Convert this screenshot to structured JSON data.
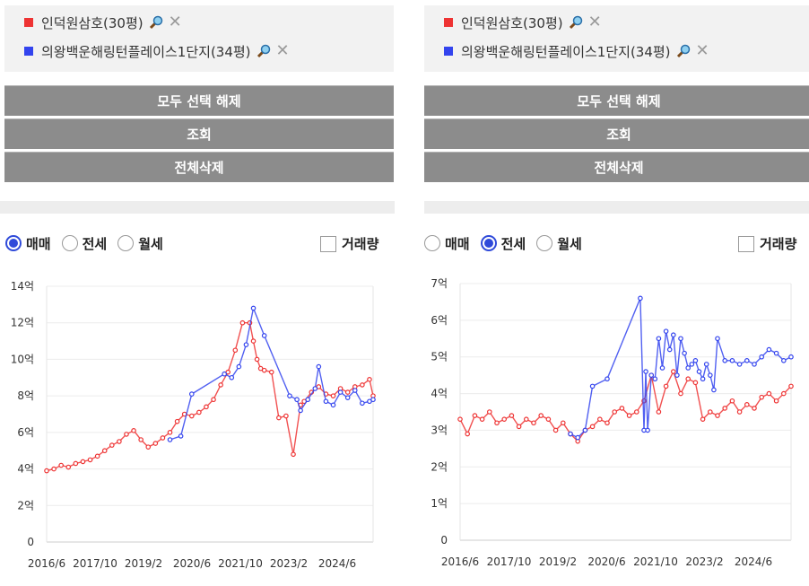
{
  "panels": [
    {
      "legend": [
        {
          "label": "인덕원삼호(30평)",
          "color": "#ee3333"
        },
        {
          "label": "의왕백운해링턴플레이스1단지(34평)",
          "color": "#3344ee"
        }
      ],
      "buttons": {
        "deselect": "모두 선택 해제",
        "search": "조회",
        "delete_all": "전체삭제"
      },
      "radios": [
        {
          "label": "매매",
          "checked": true
        },
        {
          "label": "전세",
          "checked": false
        },
        {
          "label": "월세",
          "checked": false
        }
      ],
      "volume_label": "거래량"
    },
    {
      "legend": [
        {
          "label": "인덕원삼호(30평)",
          "color": "#ee3333"
        },
        {
          "label": "의왕백운해링턴플레이스1단지(34평)",
          "color": "#3344ee"
        }
      ],
      "buttons": {
        "deselect": "모두 선택 해제",
        "search": "조회",
        "delete_all": "전체삭제"
      },
      "radios": [
        {
          "label": "매매",
          "checked": false
        },
        {
          "label": "전세",
          "checked": true
        },
        {
          "label": "월세",
          "checked": false
        }
      ],
      "volume_label": "거래량"
    }
  ],
  "chart_data": [
    {
      "type": "line",
      "ytick_labels": [
        "0",
        "2억",
        "4억",
        "6억",
        "8억",
        "10억",
        "12억",
        "14억"
      ],
      "ylim": [
        0,
        14
      ],
      "xtick_labels": [
        "2016/6",
        "2017/10",
        "2019/2",
        "2020/6",
        "2021/10",
        "2023/2",
        "2024/6"
      ],
      "xlim": [
        2016.0,
        2025.0
      ],
      "grid": true,
      "series": [
        {
          "name": "인덕원삼호(30평)",
          "color": "#ee3333",
          "x": [
            2016.0,
            2016.2,
            2016.4,
            2016.6,
            2016.8,
            2017.0,
            2017.2,
            2017.4,
            2017.6,
            2017.8,
            2018.0,
            2018.2,
            2018.4,
            2018.6,
            2018.8,
            2019.0,
            2019.2,
            2019.4,
            2019.6,
            2019.8,
            2020.0,
            2020.2,
            2020.4,
            2020.6,
            2020.8,
            2021.0,
            2021.2,
            2021.4,
            2021.6,
            2021.7,
            2021.8,
            2021.9,
            2022.0,
            2022.2,
            2022.4,
            2022.6,
            2022.8,
            2023.0,
            2023.1,
            2023.3,
            2023.5,
            2023.7,
            2023.9,
            2024.1,
            2024.3,
            2024.5,
            2024.7,
            2024.9,
            2025.0
          ],
          "y": [
            3.9,
            4.0,
            4.2,
            4.1,
            4.3,
            4.4,
            4.5,
            4.7,
            5.0,
            5.3,
            5.5,
            5.9,
            6.1,
            5.6,
            5.2,
            5.4,
            5.7,
            6.0,
            6.6,
            7.0,
            6.9,
            7.1,
            7.4,
            7.8,
            8.6,
            9.3,
            10.5,
            12.0,
            12.0,
            11.0,
            10.0,
            9.5,
            9.4,
            9.3,
            6.8,
            6.9,
            4.8,
            7.5,
            7.7,
            8.2,
            8.5,
            8.1,
            8.0,
            8.4,
            8.2,
            8.5,
            8.6,
            8.9,
            8.0
          ]
        },
        {
          "name": "의왕백운해링턴플레이스1단지(34평)",
          "color": "#3344ee",
          "x": [
            2019.4,
            2019.7,
            2020.0,
            2020.9,
            2021.1,
            2021.3,
            2021.5,
            2021.7,
            2022.0,
            2022.7,
            2022.9,
            2023.0,
            2023.2,
            2023.4,
            2023.5,
            2023.7,
            2023.9,
            2024.1,
            2024.3,
            2024.5,
            2024.7,
            2024.9,
            2025.0
          ],
          "y": [
            5.6,
            5.8,
            8.1,
            9.2,
            9.0,
            9.6,
            10.8,
            12.8,
            11.3,
            8.0,
            7.8,
            7.2,
            7.8,
            8.4,
            9.6,
            7.7,
            7.5,
            8.2,
            7.9,
            8.3,
            7.6,
            7.7,
            7.8
          ]
        }
      ]
    },
    {
      "type": "line",
      "ytick_labels": [
        "0",
        "1억",
        "2억",
        "3억",
        "4억",
        "5억",
        "6억",
        "7억"
      ],
      "ylim": [
        0,
        7
      ],
      "xtick_labels": [
        "2016/6",
        "2017/10",
        "2019/2",
        "2020/6",
        "2021/10",
        "2023/2",
        "2024/6"
      ],
      "xlim": [
        2016.0,
        2025.0
      ],
      "grid": true,
      "series": [
        {
          "name": "인덕원삼호(30평)",
          "color": "#ee3333",
          "x": [
            2016.0,
            2016.2,
            2016.4,
            2016.6,
            2016.8,
            2017.0,
            2017.2,
            2017.4,
            2017.6,
            2017.8,
            2018.0,
            2018.2,
            2018.4,
            2018.6,
            2018.8,
            2019.0,
            2019.2,
            2019.4,
            2019.6,
            2019.8,
            2020.0,
            2020.2,
            2020.4,
            2020.6,
            2020.8,
            2021.0,
            2021.2,
            2021.4,
            2021.6,
            2021.8,
            2022.0,
            2022.2,
            2022.4,
            2022.6,
            2022.8,
            2023.0,
            2023.2,
            2023.4,
            2023.6,
            2023.8,
            2024.0,
            2024.2,
            2024.4,
            2024.6,
            2024.8,
            2025.0
          ],
          "y": [
            3.3,
            2.9,
            3.4,
            3.3,
            3.5,
            3.2,
            3.3,
            3.4,
            3.1,
            3.3,
            3.2,
            3.4,
            3.3,
            3.0,
            3.2,
            2.9,
            2.7,
            3.0,
            3.1,
            3.3,
            3.2,
            3.5,
            3.6,
            3.4,
            3.5,
            3.8,
            4.5,
            3.5,
            4.2,
            4.6,
            4.0,
            4.4,
            4.3,
            3.3,
            3.5,
            3.4,
            3.6,
            3.8,
            3.5,
            3.7,
            3.6,
            3.9,
            4.0,
            3.8,
            4.0,
            4.2
          ]
        },
        {
          "name": "의왕백운해링턴플레이스1단지(34평)",
          "color": "#3344ee",
          "x": [
            2019.0,
            2019.2,
            2019.4,
            2019.6,
            2020.0,
            2020.9,
            2021.0,
            2021.05,
            2021.1,
            2021.2,
            2021.3,
            2021.4,
            2021.5,
            2021.6,
            2021.7,
            2021.8,
            2021.9,
            2022.0,
            2022.1,
            2022.2,
            2022.3,
            2022.4,
            2022.5,
            2022.6,
            2022.7,
            2022.8,
            2022.9,
            2023.0,
            2023.2,
            2023.4,
            2023.6,
            2023.8,
            2024.0,
            2024.2,
            2024.4,
            2024.6,
            2024.8,
            2025.0
          ],
          "y": [
            2.9,
            2.8,
            3.0,
            4.2,
            4.4,
            6.6,
            3.0,
            4.6,
            3.0,
            4.5,
            4.4,
            5.5,
            4.7,
            5.7,
            5.2,
            5.6,
            4.5,
            5.5,
            5.1,
            4.7,
            4.8,
            4.9,
            4.6,
            4.4,
            4.8,
            4.5,
            4.1,
            5.5,
            4.9,
            4.9,
            4.8,
            4.9,
            4.8,
            5.0,
            5.2,
            5.1,
            4.9,
            5.0
          ]
        }
      ]
    }
  ]
}
